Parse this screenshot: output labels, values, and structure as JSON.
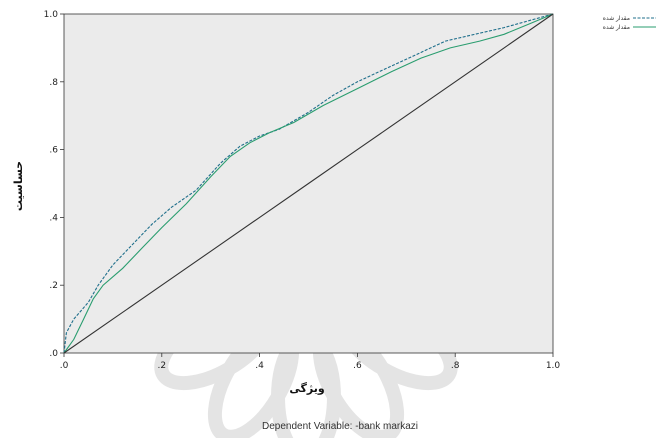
{
  "chart_data": {
    "type": "line",
    "title": "",
    "xlabel": "ویژگی",
    "ylabel": "حساسیت",
    "xlim": [
      0,
      1
    ],
    "ylim": [
      0,
      1
    ],
    "x_ticks": [
      ".0",
      ".2",
      ".4",
      ".6",
      ".8",
      "1.0"
    ],
    "y_ticks": [
      ".0",
      ".2",
      ".4",
      ".6",
      ".8",
      "1.0"
    ],
    "grid": false,
    "legend_position": "top-right",
    "footnote": "Dependent Variable: -bank markazi",
    "series": [
      {
        "name": "مقدار شده",
        "color": "#1f6f8b",
        "dashed": true,
        "points": [
          [
            0,
            0
          ],
          [
            0.005,
            0.06
          ],
          [
            0.02,
            0.1
          ],
          [
            0.05,
            0.15
          ],
          [
            0.07,
            0.2
          ],
          [
            0.1,
            0.26
          ],
          [
            0.14,
            0.32
          ],
          [
            0.18,
            0.38
          ],
          [
            0.22,
            0.43
          ],
          [
            0.27,
            0.48
          ],
          [
            0.32,
            0.56
          ],
          [
            0.36,
            0.61
          ],
          [
            0.4,
            0.64
          ],
          [
            0.44,
            0.66
          ],
          [
            0.5,
            0.71
          ],
          [
            0.55,
            0.76
          ],
          [
            0.6,
            0.8
          ],
          [
            0.66,
            0.84
          ],
          [
            0.72,
            0.88
          ],
          [
            0.78,
            0.92
          ],
          [
            0.84,
            0.94
          ],
          [
            0.9,
            0.96
          ],
          [
            0.95,
            0.98
          ],
          [
            1,
            1
          ]
        ]
      },
      {
        "name": "مقدار شده",
        "color": "#2a9d6f",
        "dashed": false,
        "points": [
          [
            0,
            0
          ],
          [
            0.02,
            0.04
          ],
          [
            0.04,
            0.1
          ],
          [
            0.06,
            0.16
          ],
          [
            0.08,
            0.2
          ],
          [
            0.12,
            0.25
          ],
          [
            0.16,
            0.31
          ],
          [
            0.2,
            0.37
          ],
          [
            0.25,
            0.44
          ],
          [
            0.3,
            0.52
          ],
          [
            0.34,
            0.58
          ],
          [
            0.38,
            0.62
          ],
          [
            0.42,
            0.65
          ],
          [
            0.47,
            0.68
          ],
          [
            0.53,
            0.73
          ],
          [
            0.6,
            0.78
          ],
          [
            0.67,
            0.83
          ],
          [
            0.73,
            0.87
          ],
          [
            0.79,
            0.9
          ],
          [
            0.85,
            0.92
          ],
          [
            0.9,
            0.94
          ],
          [
            0.95,
            0.97
          ],
          [
            1,
            1
          ]
        ]
      },
      {
        "name": "Reference Line",
        "color": "#333333",
        "dashed": false,
        "points": [
          [
            0,
            0
          ],
          [
            0.1,
            0.1
          ],
          [
            0.2,
            0.2
          ],
          [
            0.3,
            0.3
          ],
          [
            0.4,
            0.4
          ],
          [
            0.5,
            0.5
          ],
          [
            0.6,
            0.6
          ],
          [
            0.7,
            0.7
          ],
          [
            0.8,
            0.8
          ],
          [
            0.9,
            0.9
          ],
          [
            1,
            1
          ]
        ]
      }
    ]
  }
}
